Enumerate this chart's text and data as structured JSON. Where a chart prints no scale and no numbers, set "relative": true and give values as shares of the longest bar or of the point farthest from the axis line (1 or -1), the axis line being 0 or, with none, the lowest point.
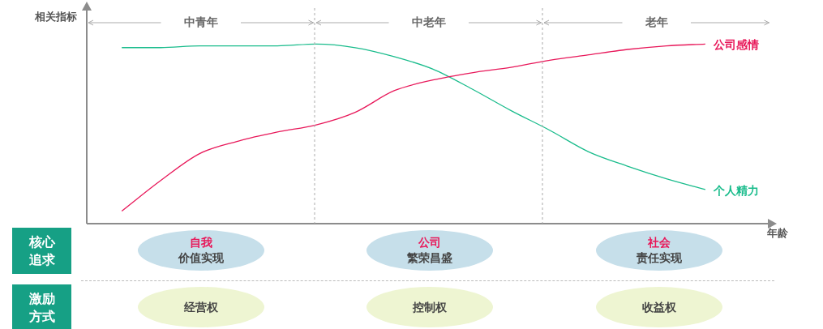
{
  "chart_data": {
    "type": "line",
    "relative": true,
    "ylabel": "相关指标",
    "xlabel": "年龄",
    "marker": "none",
    "categories": [
      null,
      null,
      null,
      null,
      null,
      null,
      null,
      null,
      null,
      null,
      null,
      null,
      null,
      null,
      null,
      null
    ],
    "series": [
      {
        "name": "公司感情",
        "color": "#e8185a",
        "values": [
          0.07,
          0.24,
          0.39,
          0.46,
          0.51,
          0.55,
          0.62,
          0.74,
          0.8,
          0.84,
          0.87,
          0.91,
          0.94,
          0.97,
          0.99,
          1.0
        ]
      },
      {
        "name": "个人精力",
        "color": "#1abc8c",
        "values": [
          0.98,
          0.98,
          0.99,
          0.99,
          0.99,
          1.0,
          0.98,
          0.93,
          0.86,
          0.75,
          0.63,
          0.52,
          0.4,
          0.32,
          0.25,
          0.19
        ]
      }
    ],
    "annotations": [
      "中青年",
      "中老年",
      "老年",
      "核心追求",
      "自我",
      "价值实现",
      "公司",
      "繁荣昌盛",
      "社会",
      "责任实现",
      "激励方式",
      "经营权",
      "控制权",
      "收益权"
    ]
  }
}
